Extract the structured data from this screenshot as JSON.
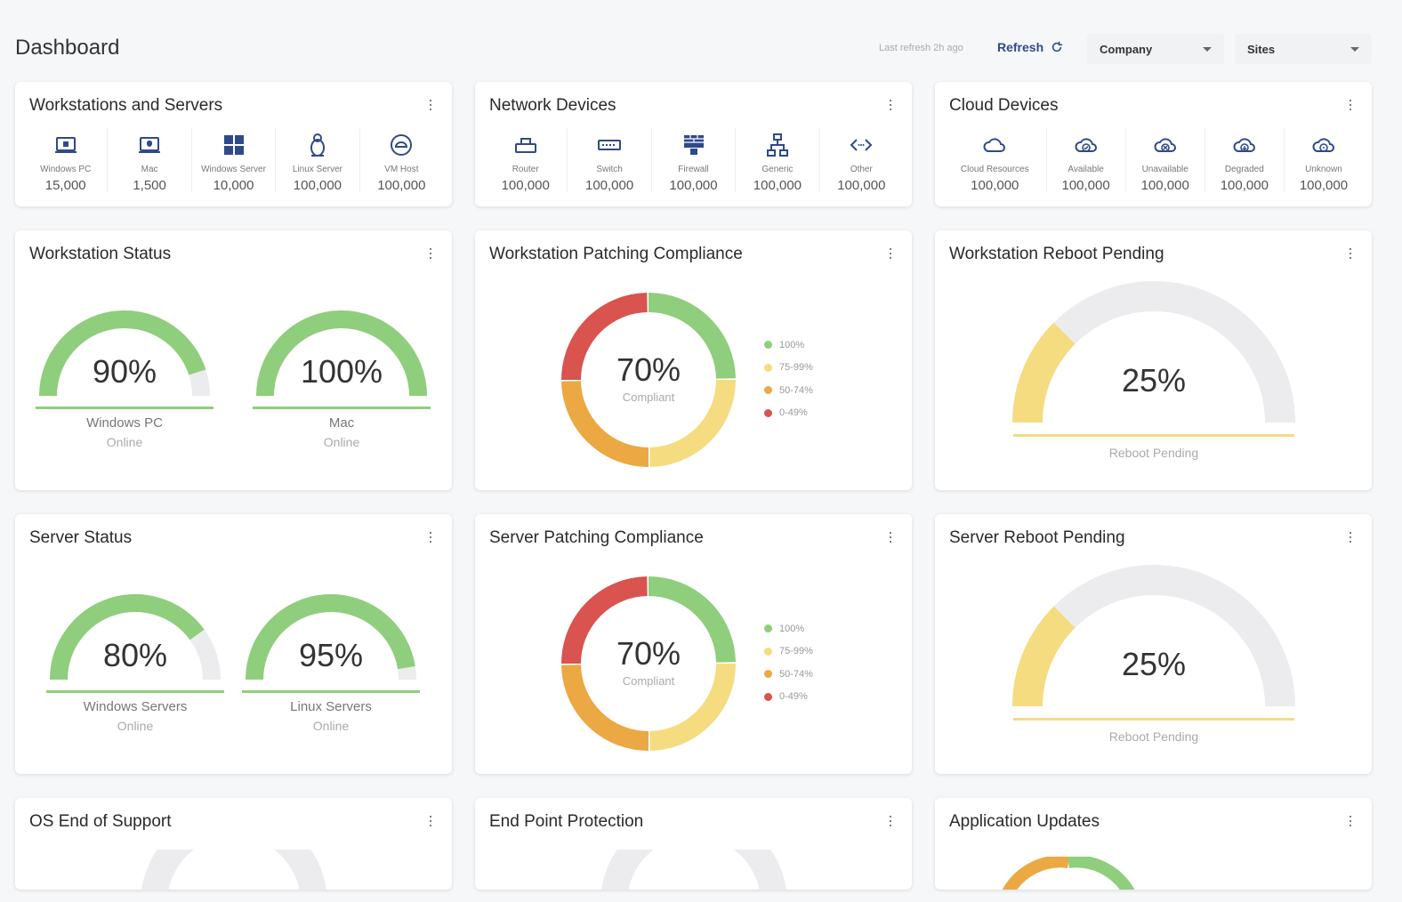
{
  "header": {
    "title": "Dashboard",
    "last_refresh": "Last refresh 2h ago",
    "refresh_label": "Refresh",
    "company_label": "Company",
    "sites_label": "Sites"
  },
  "workstations_servers": {
    "title": "Workstations and Servers",
    "items": [
      {
        "label": "Windows PC",
        "count": "15,000",
        "icon": "laptop-icon"
      },
      {
        "label": "Mac",
        "count": "1,500",
        "icon": "mac-icon"
      },
      {
        "label": "Windows Server",
        "count": "10,000",
        "icon": "windows-icon"
      },
      {
        "label": "Linux Server",
        "count": "100,000",
        "icon": "linux-icon"
      },
      {
        "label": "VM Host",
        "count": "100,000",
        "icon": "vm-host-icon"
      }
    ]
  },
  "network_devices": {
    "title": "Network Devices",
    "items": [
      {
        "label": "Router",
        "count": "100,000",
        "icon": "router-icon"
      },
      {
        "label": "Switch",
        "count": "100,000",
        "icon": "switch-icon"
      },
      {
        "label": "Firewall",
        "count": "100,000",
        "icon": "firewall-icon"
      },
      {
        "label": "Generic",
        "count": "100,000",
        "icon": "network-tree-icon"
      },
      {
        "label": "Other",
        "count": "100,000",
        "icon": "code-icon"
      }
    ]
  },
  "cloud_devices": {
    "title": "Cloud Devices",
    "items": [
      {
        "label": "Cloud Resources",
        "count": "100,000",
        "icon": "cloud-icon"
      },
      {
        "label": "Available",
        "count": "100,000",
        "icon": "cloud-check-icon"
      },
      {
        "label": "Unavailable",
        "count": "100,000",
        "icon": "cloud-x-icon"
      },
      {
        "label": "Degraded",
        "count": "100,000",
        "icon": "cloud-down-icon"
      },
      {
        "label": "Unknown",
        "count": "100,000",
        "icon": "cloud-question-icon"
      }
    ]
  },
  "workstation_status": {
    "title": "Workstation Status",
    "gauges": [
      {
        "pct_text": "90%",
        "value": 0.9,
        "label": "Windows PC",
        "sub": "Online"
      },
      {
        "pct_text": "100%",
        "value": 1.0,
        "label": "Mac",
        "sub": "Online"
      }
    ]
  },
  "workstation_patching": {
    "title": "Workstation Patching Compliance",
    "pct_text": "70%",
    "sub": "Compliant"
  },
  "workstation_reboot": {
    "title": "Workstation Reboot Pending",
    "pct_text": "25%",
    "value": 0.25,
    "label": "Reboot Pending"
  },
  "server_status": {
    "title": "Server Status",
    "gauges": [
      {
        "pct_text": "80%",
        "value": 0.8,
        "label": "Windows Servers",
        "sub": "Online"
      },
      {
        "pct_text": "95%",
        "value": 0.95,
        "label": "Linux Servers",
        "sub": "Online"
      }
    ]
  },
  "server_patching": {
    "title": "Server Patching Compliance",
    "pct_text": "70%",
    "sub": "Compliant"
  },
  "server_reboot": {
    "title": "Server Reboot Pending",
    "pct_text": "25%",
    "value": 0.25,
    "label": "Reboot Pending"
  },
  "patch_legend": [
    {
      "label": "100%",
      "color": "#8fce7c"
    },
    {
      "label": "75-99%",
      "color": "#f5dc80"
    },
    {
      "label": "50-74%",
      "color": "#eba843"
    },
    {
      "label": "0-49%",
      "color": "#d9534f"
    }
  ],
  "donut_segments": [
    {
      "range": "100%",
      "share": 0.25,
      "color": "#8fce7c"
    },
    {
      "range": "75-99%",
      "share": 0.25,
      "color": "#f5dc80"
    },
    {
      "range": "50-74%",
      "share": 0.25,
      "color": "#eba843"
    },
    {
      "range": "0-49%",
      "share": 0.25,
      "color": "#d9534f"
    }
  ],
  "os_eos": {
    "title": "OS End of Support"
  },
  "endpoint": {
    "title": "End Point Protection"
  },
  "app_updates": {
    "title": "Application Updates"
  },
  "colors": {
    "green": "#8fce7c",
    "yellow": "#f5dc80",
    "orange": "#eba843",
    "red": "#d9534f",
    "track": "#ececee",
    "brand": "#2f4a8a"
  }
}
